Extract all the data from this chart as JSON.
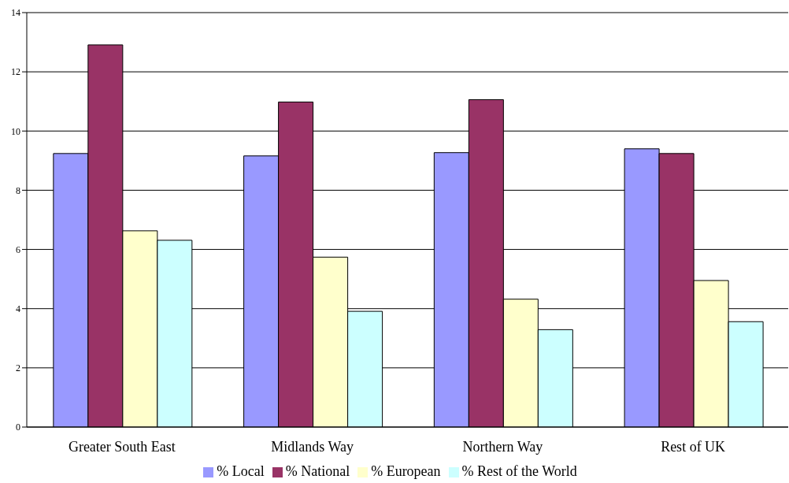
{
  "chart_data": {
    "type": "bar",
    "categories": [
      "Greater South East",
      "Midlands Way",
      "Northern Way",
      "Rest of UK"
    ],
    "series": [
      {
        "name": "% Local",
        "color": "#9999ff",
        "values": [
          9.24,
          9.16,
          9.27,
          9.4
        ]
      },
      {
        "name": "% National",
        "color": "#993366",
        "values": [
          12.91,
          10.98,
          11.06,
          9.24
        ]
      },
      {
        "name": "% European",
        "color": "#ffffcc",
        "values": [
          6.63,
          5.74,
          4.32,
          4.95
        ]
      },
      {
        "name": "% Rest of the World",
        "color": "#ccffff",
        "values": [
          6.31,
          3.91,
          3.29,
          3.56
        ]
      }
    ],
    "ylim": [
      0,
      14
    ],
    "yticks": [
      0,
      2,
      4,
      6,
      8,
      10,
      12,
      14
    ],
    "grid": "y",
    "legend": "bottom"
  }
}
